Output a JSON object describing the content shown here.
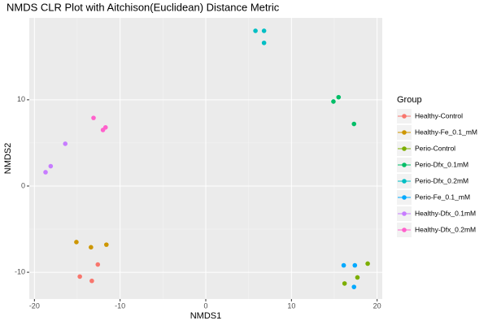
{
  "chart_data": {
    "type": "scatter",
    "title": "NMDS CLR Plot with Aitchison(Euclidean) Distance Metric",
    "x_label": "NMDS1",
    "y_label": "NMDS2",
    "legend_title": "Group",
    "xlim": [
      -20.6,
      20.6
    ],
    "ylim": [
      -13.1,
      19.5
    ],
    "xticks": [
      -20,
      -10,
      0,
      10,
      20
    ],
    "yticks": [
      -10,
      0,
      10
    ],
    "grid": true,
    "legend": "right",
    "series": [
      {
        "name": "Healthy-Control",
        "color": "#F8766D",
        "x": [
          -14.7,
          -12.6,
          -13.3
        ],
        "values": [
          -10.5,
          -9.1,
          -11.0
        ]
      },
      {
        "name": "Healthy-Fe_0.1_mM",
        "color": "#CD9600",
        "x": [
          -15.1,
          -13.4,
          -11.6
        ],
        "values": [
          -6.5,
          -7.1,
          -6.8
        ]
      },
      {
        "name": "Perio-Control",
        "color": "#7CAE00",
        "x": [
          18.9,
          17.7,
          16.2
        ],
        "values": [
          -9.0,
          -10.6,
          -11.3
        ]
      },
      {
        "name": "Perio-Dfx_0.1mM",
        "color": "#00BE67",
        "x": [
          15.5,
          14.9,
          17.3
        ],
        "values": [
          10.3,
          9.8,
          7.2
        ]
      },
      {
        "name": "Perio-Dfx_0.2mM",
        "color": "#00BFC4",
        "x": [
          5.8,
          6.8,
          6.8
        ],
        "values": [
          18.0,
          18.0,
          16.6
        ]
      },
      {
        "name": "Perio-Fe_0.1_mM",
        "color": "#00A9FF",
        "x": [
          16.1,
          17.4,
          17.3
        ],
        "values": [
          -9.2,
          -9.2,
          -11.7
        ]
      },
      {
        "name": "Healthy-Dfx_0.1mM",
        "color": "#C77CFF",
        "x": [
          -16.4,
          -18.1,
          -18.7
        ],
        "values": [
          4.9,
          2.3,
          1.6
        ]
      },
      {
        "name": "Healthy-Dfx_0.2mM",
        "color": "#FF61CC",
        "x": [
          -13.1,
          -11.7,
          -12.0
        ],
        "values": [
          7.9,
          6.8,
          6.5
        ]
      }
    ]
  }
}
